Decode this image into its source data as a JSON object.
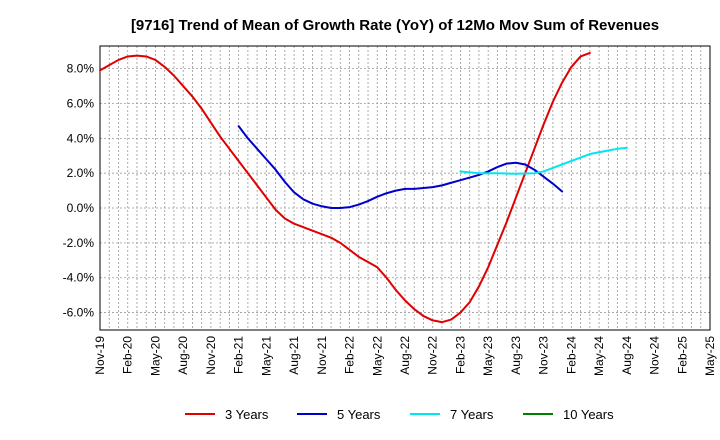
{
  "chart_data": {
    "type": "line",
    "title": "[9716]  Trend of Mean of Growth Rate (YoY) of 12Mo Mov Sum of Revenues",
    "xlabel": "",
    "ylabel": "",
    "ylim": [
      -7.0,
      9.3
    ],
    "yticks": [
      8.0,
      6.0,
      4.0,
      2.0,
      0.0,
      -2.0,
      -4.0,
      -6.0
    ],
    "ytick_labels": [
      "8.0%",
      "6.0%",
      "4.0%",
      "2.0%",
      "0.0%",
      "-2.0%",
      "-4.0%",
      "-6.0%"
    ],
    "x_labels": [
      "Nov-19",
      "Feb-20",
      "May-20",
      "Aug-20",
      "Nov-20",
      "Feb-21",
      "May-21",
      "Aug-21",
      "Nov-21",
      "Feb-22",
      "May-22",
      "Aug-22",
      "Nov-22",
      "Feb-23",
      "May-23",
      "Aug-23",
      "Nov-23",
      "Feb-24",
      "May-24",
      "Aug-24",
      "Nov-24",
      "Feb-25",
      "May-25"
    ],
    "grid": true,
    "legend_position": "bottom",
    "series": [
      {
        "name": "3 Years",
        "color": "#e00000",
        "start_index": 0,
        "values": [
          7.9,
          8.2,
          8.5,
          8.7,
          8.75,
          8.7,
          8.5,
          8.1,
          7.6,
          7.0,
          6.4,
          5.7,
          4.9,
          4.1,
          3.4,
          2.7,
          2.0,
          1.3,
          0.6,
          -0.1,
          -0.6,
          -0.9,
          -1.1,
          -1.3,
          -1.5,
          -1.7,
          -2.0,
          -2.4,
          -2.8,
          -3.1,
          -3.4,
          -4.0,
          -4.7,
          -5.3,
          -5.8,
          -6.2,
          -6.45,
          -6.55,
          -6.4,
          -6.0,
          -5.4,
          -4.5,
          -3.4,
          -2.1,
          -0.8,
          0.6,
          2.0,
          3.4,
          4.8,
          6.1,
          7.2,
          8.1,
          8.7,
          8.9
        ]
      },
      {
        "name": "5 Years",
        "color": "#0000cc",
        "start_index": 15,
        "values": [
          4.7,
          4.0,
          3.4,
          2.8,
          2.2,
          1.5,
          0.9,
          0.5,
          0.25,
          0.1,
          0.0,
          0.0,
          0.05,
          0.2,
          0.4,
          0.65,
          0.85,
          1.0,
          1.1,
          1.1,
          1.15,
          1.2,
          1.3,
          1.45,
          1.6,
          1.75,
          1.9,
          2.1,
          2.35,
          2.55,
          2.6,
          2.5,
          2.2,
          1.8,
          1.4,
          0.95
        ]
      },
      {
        "name": "7 Years",
        "color": "#00e5ee",
        "start_index": 39,
        "values": [
          2.1,
          2.05,
          2.0,
          2.0,
          2.0,
          1.98,
          1.97,
          1.98,
          2.0,
          2.1,
          2.3,
          2.5,
          2.7,
          2.9,
          3.1,
          3.2,
          3.3,
          3.4,
          3.45
        ]
      },
      {
        "name": "10 Years",
        "color": "#008000",
        "start_index": 0,
        "values": []
      }
    ]
  }
}
